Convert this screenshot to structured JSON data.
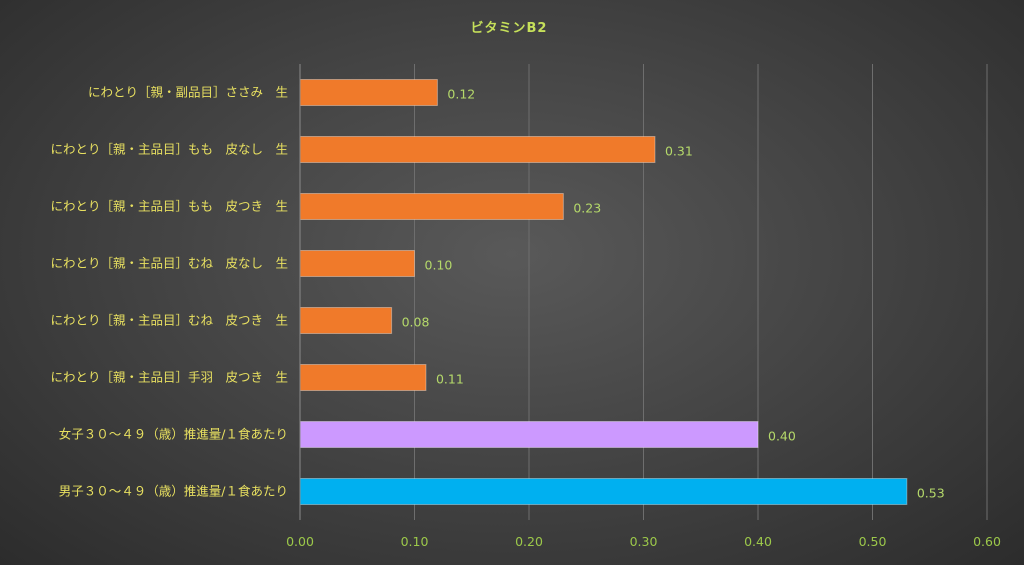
{
  "chart_data": {
    "type": "bar",
    "orientation": "horizontal",
    "title": "ビタミンB2",
    "categories": [
      "にわとり［親・副品目］ささみ　生",
      "にわとり［親・主品目］もも　皮なし　生",
      "にわとり［親・主品目］もも　皮つき　生",
      "にわとり［親・主品目］むね　皮なし　生",
      "にわとり［親・主品目］むね　皮つき　生",
      "にわとり［親・主品目］手羽　皮つき　生",
      "女子３０～４９（歳）推進量/１食あたり",
      "男子３０～４９（歳）推進量/１食あたり"
    ],
    "values": [
      0.12,
      0.31,
      0.23,
      0.1,
      0.08,
      0.11,
      0.4,
      0.53
    ],
    "value_labels": [
      "0.12",
      "0.31",
      "0.23",
      "0.10",
      "0.08",
      "0.11",
      "0.40",
      "0.53"
    ],
    "bar_colors": [
      "#f07a2a",
      "#f07a2a",
      "#f07a2a",
      "#f07a2a",
      "#f07a2a",
      "#f07a2a",
      "#cc99ff",
      "#00b0f0"
    ],
    "xlim": [
      0,
      0.6
    ],
    "xticks": [
      "0.00",
      "0.10",
      "0.20",
      "0.30",
      "0.40",
      "0.50",
      "0.60"
    ],
    "xlabel": "",
    "ylabel": "",
    "grid": true,
    "legend": "none"
  },
  "colors": {
    "title": "#c6e05a",
    "category_label": "#e8e060",
    "tick_label": "#9cc84a",
    "data_label": "#b5d96a",
    "gridline": "#6e6e6e",
    "axis": "#8a8a8a"
  }
}
